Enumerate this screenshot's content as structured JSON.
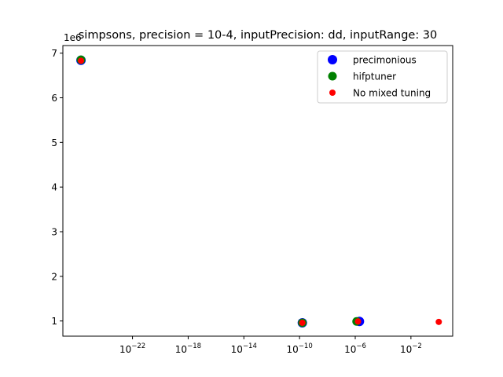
{
  "chart_data": {
    "type": "scatter",
    "title": "simpsons, precision = 10-4, inputPrecision: dd, inputRange: 30",
    "xlabel": "",
    "ylabel": "",
    "x_scale": "log",
    "xlim_exp": [
      -27,
      1
    ],
    "ylim": [
      0.66,
      7.17
    ],
    "y_offset_label": "1e6",
    "x_ticks_exp": [
      -22,
      -18,
      -14,
      -10,
      -6,
      -2
    ],
    "y_ticks": [
      1,
      2,
      3,
      4,
      5,
      6,
      7
    ],
    "legend_position": "upper right",
    "grid": false,
    "series": [
      {
        "name": "precimonious",
        "color": "#0000ff",
        "marker_size": "large",
        "points": [
          {
            "x_exp": -25.7,
            "y": 6.84
          },
          {
            "x_exp": -9.8,
            "y": 0.96
          },
          {
            "x_exp": -5.7,
            "y": 0.99
          }
        ]
      },
      {
        "name": "hifptuner",
        "color": "#008000",
        "marker_size": "medium",
        "points": [
          {
            "x_exp": -25.7,
            "y": 6.85
          },
          {
            "x_exp": -9.8,
            "y": 0.96
          },
          {
            "x_exp": -5.9,
            "y": 0.99
          }
        ]
      },
      {
        "name": "No mixed tuning",
        "color": "#ff0000",
        "marker_size": "small",
        "points": [
          {
            "x_exp": -25.7,
            "y": 6.83
          },
          {
            "x_exp": -9.8,
            "y": 0.96
          },
          {
            "x_exp": -5.8,
            "y": 0.99
          },
          {
            "x_exp": 0.0,
            "y": 0.98
          }
        ]
      }
    ]
  }
}
